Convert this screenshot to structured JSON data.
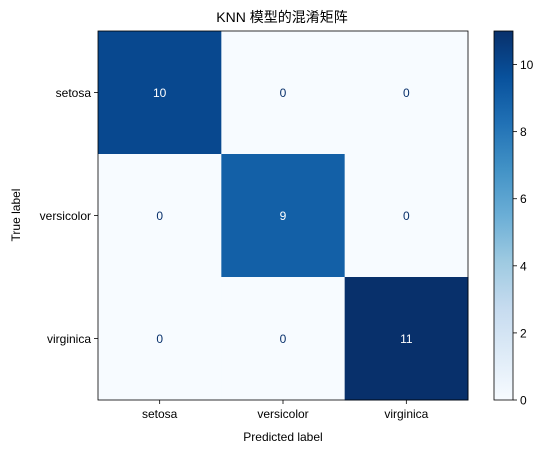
{
  "chart_data": {
    "type": "heatmap",
    "title": "KNN 模型的混淆矩阵",
    "xlabel": "Predicted label",
    "ylabel": "True label",
    "x_categories": [
      "setosa",
      "versicolor",
      "virginica"
    ],
    "y_categories": [
      "setosa",
      "versicolor",
      "virginica"
    ],
    "matrix": [
      [
        10,
        0,
        0
      ],
      [
        0,
        9,
        0
      ],
      [
        0,
        0,
        11
      ]
    ],
    "colormap": "Blues",
    "colormap_colors": [
      "#f7fbff",
      "#deebf7",
      "#c6dbef",
      "#9ecae1",
      "#6baed6",
      "#4292c6",
      "#2171b5",
      "#08519c",
      "#08306b"
    ],
    "value_range": [
      0,
      11
    ],
    "colorbar_ticks": [
      0,
      2,
      4,
      6,
      8,
      10
    ],
    "text_color_light": "#ffffff",
    "text_color_dark": "#08306b",
    "grid": false
  }
}
